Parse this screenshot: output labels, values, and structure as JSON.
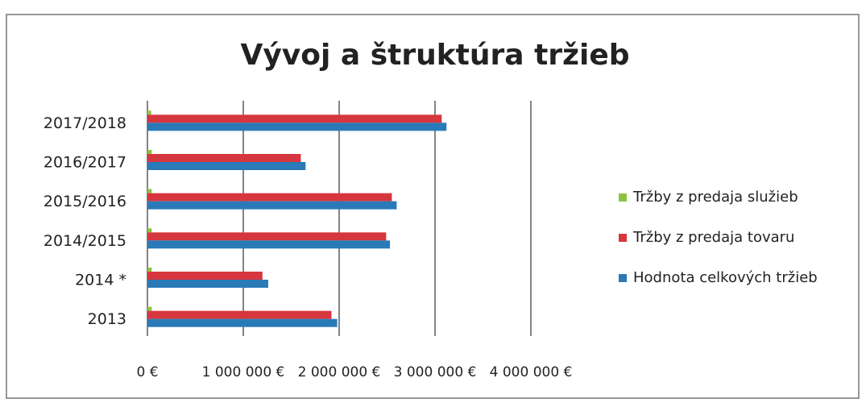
{
  "chart_data": {
    "type": "bar",
    "orientation": "horizontal",
    "title": "Vývoj a štruktúra tržieb",
    "categories": [
      "2017/2018",
      "2016/2017",
      "2015/2016",
      "2014/2015",
      "2014 *",
      "2013"
    ],
    "series": [
      {
        "name": "Tržby z predaja služieb",
        "color": "#8ac43f",
        "values": [
          40000,
          45000,
          45000,
          45000,
          45000,
          45000
        ]
      },
      {
        "name": "Tržby z predaja tovaru",
        "color": "#d6363e",
        "values": [
          3070000,
          1600000,
          2550000,
          2490000,
          1200000,
          1920000
        ]
      },
      {
        "name": "Hodnota celkových tržieb",
        "color": "#2a7ab8",
        "values": [
          3120000,
          1650000,
          2600000,
          2530000,
          1260000,
          1980000
        ]
      }
    ],
    "xlim": [
      0,
      4000000
    ],
    "xticks": [
      {
        "value": 0,
        "label": "0 €"
      },
      {
        "value": 1000000,
        "label": "1 000 000 €"
      },
      {
        "value": 2000000,
        "label": "2 000 000 €"
      },
      {
        "value": 3000000,
        "label": "3 000 000 €"
      },
      {
        "value": 4000000,
        "label": "4 000 000 €"
      }
    ],
    "grid": true,
    "legend": "right"
  }
}
